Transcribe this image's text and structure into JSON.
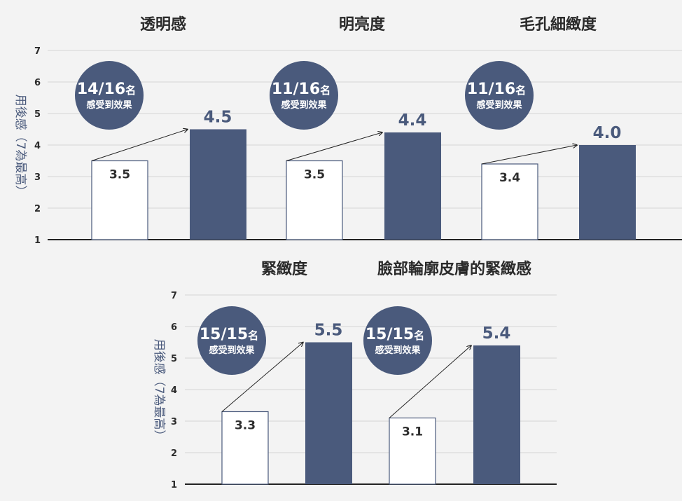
{
  "chart_data": [
    {
      "type": "bar",
      "title": "透明感",
      "ylabel": "用後感（7為最高）",
      "ylim": [
        1,
        7
      ],
      "yticks": [
        "1",
        "2",
        "3",
        "4",
        "5",
        "6",
        "7"
      ],
      "values": [
        3.5,
        4.5
      ],
      "value_labels": [
        "3.5",
        "4.5"
      ],
      "badge": {
        "count": "14/16",
        "unit": "名",
        "caption": "感受到效果"
      },
      "colors": {
        "before": "#ffffff",
        "after": "#4a5a7c"
      }
    },
    {
      "type": "bar",
      "title": "明亮度",
      "ylim": [
        1,
        7
      ],
      "values": [
        3.5,
        4.4
      ],
      "value_labels": [
        "3.5",
        "4.4"
      ],
      "badge": {
        "count": "11/16",
        "unit": "名",
        "caption": "感受到效果"
      }
    },
    {
      "type": "bar",
      "title": "毛孔細緻度",
      "ylim": [
        1,
        7
      ],
      "values": [
        3.4,
        4.0
      ],
      "value_labels": [
        "3.4",
        "4.0"
      ],
      "badge": {
        "count": "11/16",
        "unit": "名",
        "caption": "感受到效果"
      }
    },
    {
      "type": "bar",
      "title": "緊緻度",
      "ylabel": "用後感（7為最高）",
      "ylim": [
        1,
        7
      ],
      "yticks": [
        "1",
        "2",
        "3",
        "4",
        "5",
        "6",
        "7"
      ],
      "values": [
        3.3,
        5.5
      ],
      "value_labels": [
        "3.3",
        "5.5"
      ],
      "badge": {
        "count": "15/15",
        "unit": "名",
        "caption": "感受到效果"
      }
    },
    {
      "type": "bar",
      "title": "臉部輪廓皮膚的緊緻感",
      "ylim": [
        1,
        7
      ],
      "values": [
        3.1,
        5.4
      ],
      "value_labels": [
        "3.1",
        "5.4"
      ],
      "badge": {
        "count": "15/15",
        "unit": "名",
        "caption": "感受到效果"
      }
    }
  ]
}
